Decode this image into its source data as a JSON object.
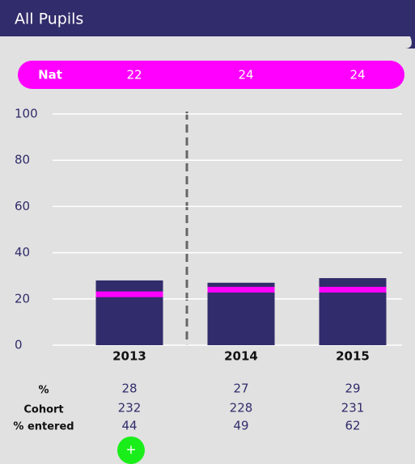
{
  "header": {
    "title": "All Pupils"
  },
  "national": {
    "label": "Nat",
    "values": [
      22,
      24,
      24
    ],
    "color": "#ff00ff"
  },
  "chart_data": {
    "type": "bar",
    "categories": [
      "2013",
      "2014",
      "2015"
    ],
    "values": [
      28,
      27,
      29
    ],
    "color": "#312c6b",
    "ylim": [
      0,
      100
    ],
    "yticks": [
      0,
      20,
      40,
      60,
      80,
      100
    ],
    "grid": true
  },
  "table": {
    "labels": [
      "%",
      "Cohort",
      "% entered"
    ],
    "cohort": [
      232,
      228,
      231
    ],
    "entered": [
      44,
      49,
      62
    ]
  },
  "button": {
    "label": "+"
  }
}
